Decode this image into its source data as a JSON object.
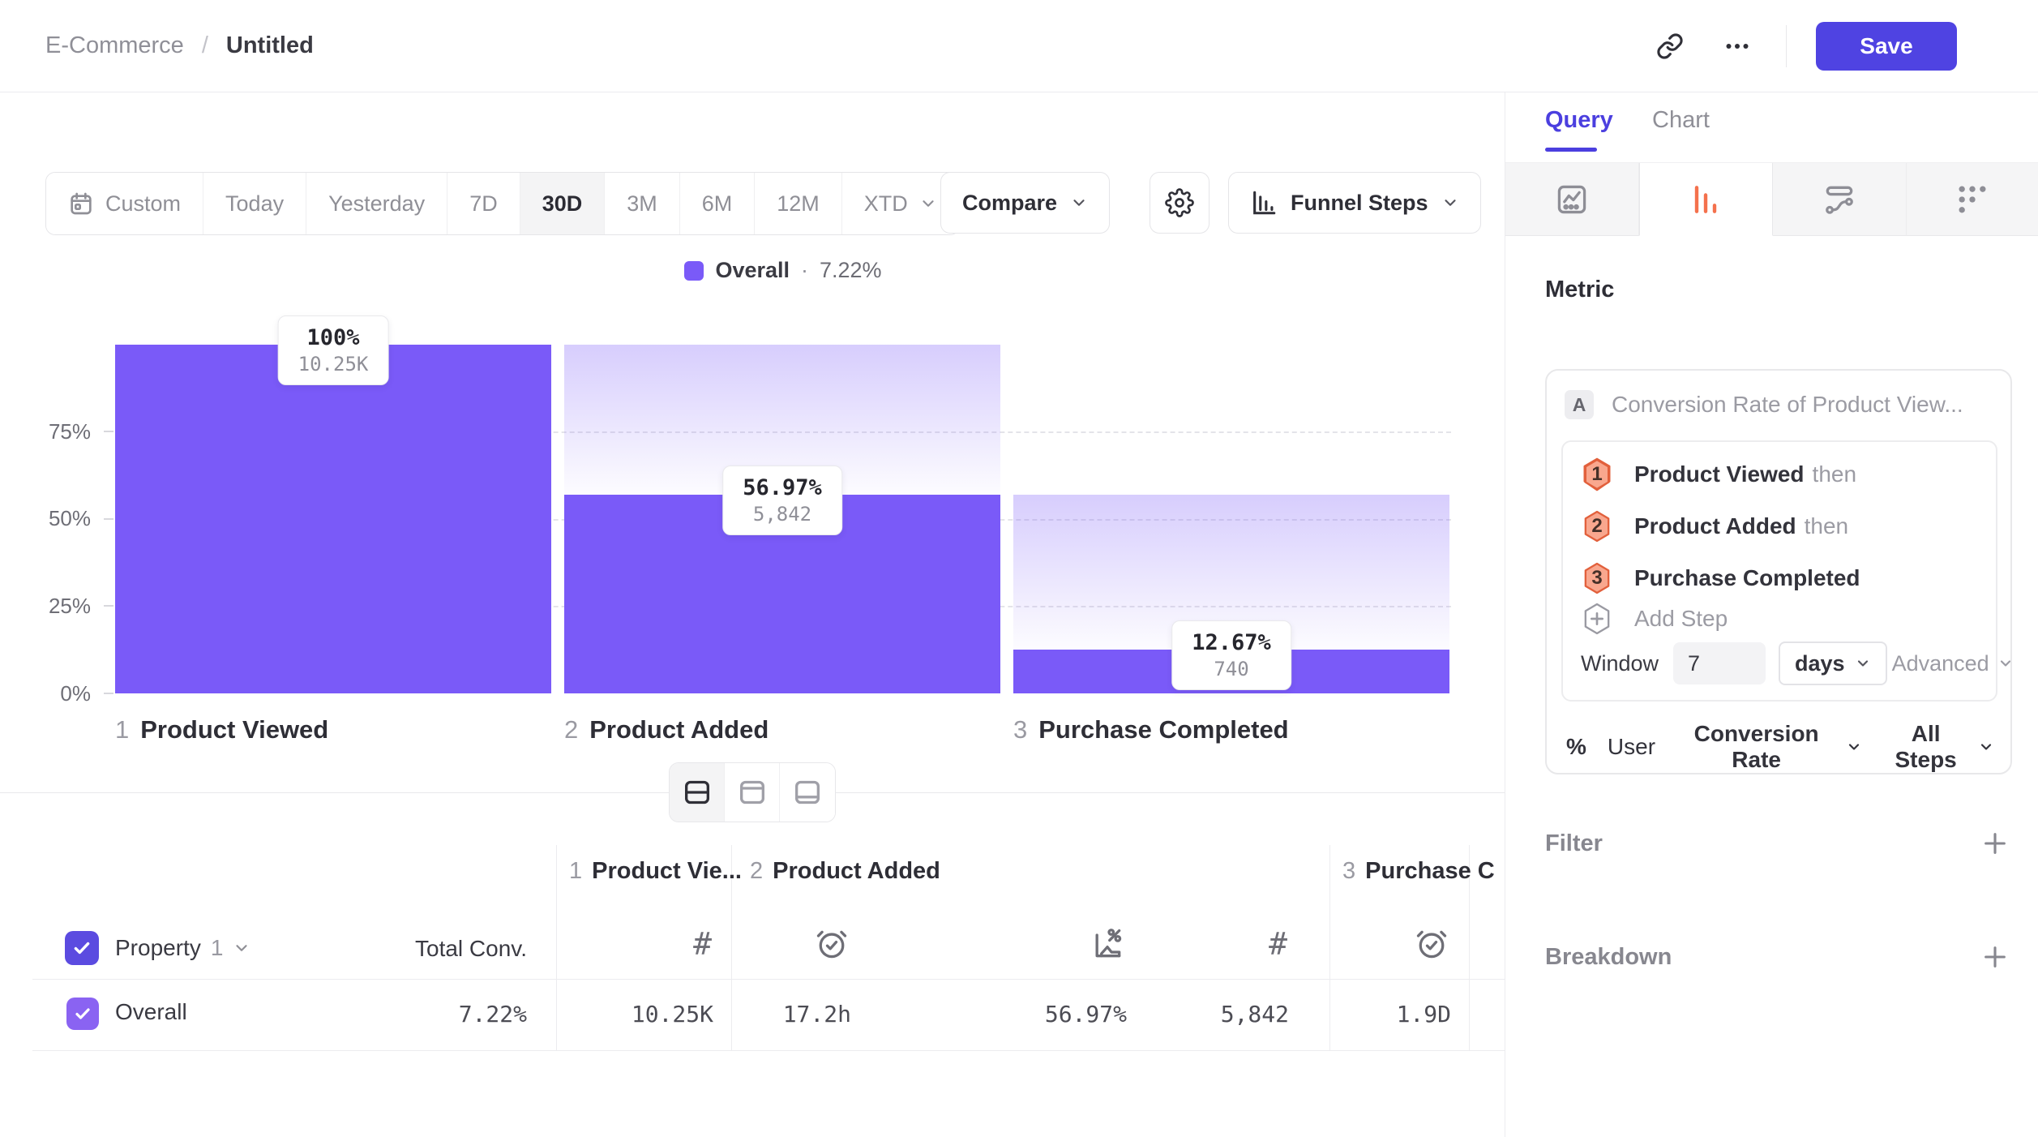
{
  "header": {
    "breadcrumb_root": "E-Commerce",
    "breadcrumb_sep": "/",
    "breadcrumb_current": "Untitled",
    "save_label": "Save"
  },
  "toolbar": {
    "date_ranges": [
      "Custom",
      "Today",
      "Yesterday",
      "7D",
      "30D",
      "3M",
      "6M",
      "12M",
      "XTD"
    ],
    "selected_range": "30D",
    "compare_label": "Compare",
    "chart_type_label": "Funnel Steps"
  },
  "legend": {
    "series_label": "Overall",
    "separator": "·",
    "value": "7.22%"
  },
  "chart_data": {
    "type": "funnel-bar",
    "series_name": "Overall",
    "overall_conversion": "7.22%",
    "ylim": [
      0,
      100
    ],
    "y_ticks": [
      "0%",
      "25%",
      "50%",
      "75%"
    ],
    "grid": "dashed-horizontal",
    "bar_color": "#7a5af8",
    "steps": [
      {
        "index": "1",
        "name": "Product Viewed",
        "pct": 100,
        "pct_label": "100%",
        "count": 10250,
        "count_label": "10.25K"
      },
      {
        "index": "2",
        "name": "Product Added",
        "pct": 56.97,
        "pct_label": "56.97%",
        "count": 5842,
        "count_label": "5,842"
      },
      {
        "index": "3",
        "name": "Purchase Completed",
        "pct": 12.67,
        "pct_label": "12.67%",
        "count": 740,
        "count_label": "740"
      }
    ]
  },
  "table": {
    "property_label": "Property",
    "property_number": "1",
    "total_conv_header": "Total Conv.",
    "step_headers": [
      {
        "index": "1",
        "name": "Product Vie..."
      },
      {
        "index": "2",
        "name": "Product Added"
      },
      {
        "index": "3",
        "name": "Purchase C"
      }
    ],
    "row": {
      "name": "Overall",
      "total_conv": "7.22%",
      "step1_count": "10.25K",
      "step2_avg_time": "17.2h",
      "step2_conv_rate": "56.97%",
      "step2_count": "5,842",
      "step3_avg_time": "1.9D"
    }
  },
  "sidebar": {
    "tabs": {
      "query": "Query",
      "chart": "Chart"
    },
    "metric_heading": "Metric",
    "metric": {
      "series_badge": "A",
      "title": "Conversion Rate of Product View...",
      "steps": [
        {
          "number": "1",
          "name": "Product Viewed",
          "connector": "then"
        },
        {
          "number": "2",
          "name": "Product Added",
          "connector": "then"
        },
        {
          "number": "3",
          "name": "Purchase Completed",
          "connector": ""
        }
      ],
      "add_step_label": "Add Step",
      "window_label": "Window",
      "window_value": "7",
      "window_unit": "days",
      "advanced_label": "Advanced",
      "measure_symbol": "%",
      "measure_entity": "User",
      "measure_type": "Conversion Rate",
      "measure_scope": "All Steps"
    },
    "filter_heading": "Filter",
    "breakdown_heading": "Breakdown"
  },
  "colors": {
    "accent_purple": "#7a5af8",
    "indigo": "#4f43e2",
    "orange": "#f4714d"
  }
}
